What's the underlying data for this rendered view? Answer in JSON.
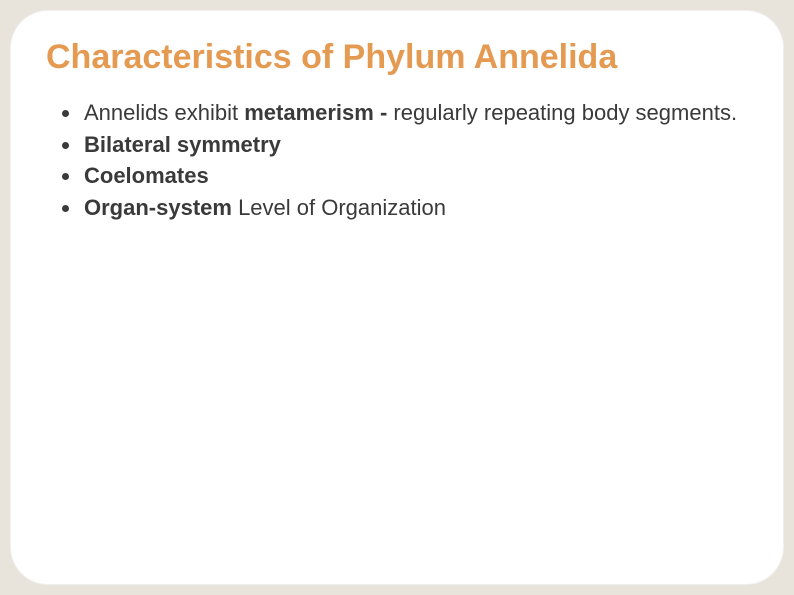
{
  "slide": {
    "title": "Characteristics of Phylum Annelida",
    "title_color": "#e59a52",
    "title_fontsize": 34,
    "background_color": "#e8e4dc",
    "frame_color": "#ffffff",
    "frame_radius": 38,
    "body_text_color": "#3a3a3a",
    "body_fontsize": 22,
    "bullets": [
      {
        "pre": "Annelids exhibit ",
        "bold": "metamerism -",
        "post": " regularly repeating body segments."
      },
      {
        "pre": "",
        "bold": "Bilateral symmetry",
        "post": ""
      },
      {
        "pre": "",
        "bold": "Coelomates",
        "post": ""
      },
      {
        "pre": "",
        "bold": "Organ-system",
        "post": " Level of Organization"
      }
    ]
  }
}
